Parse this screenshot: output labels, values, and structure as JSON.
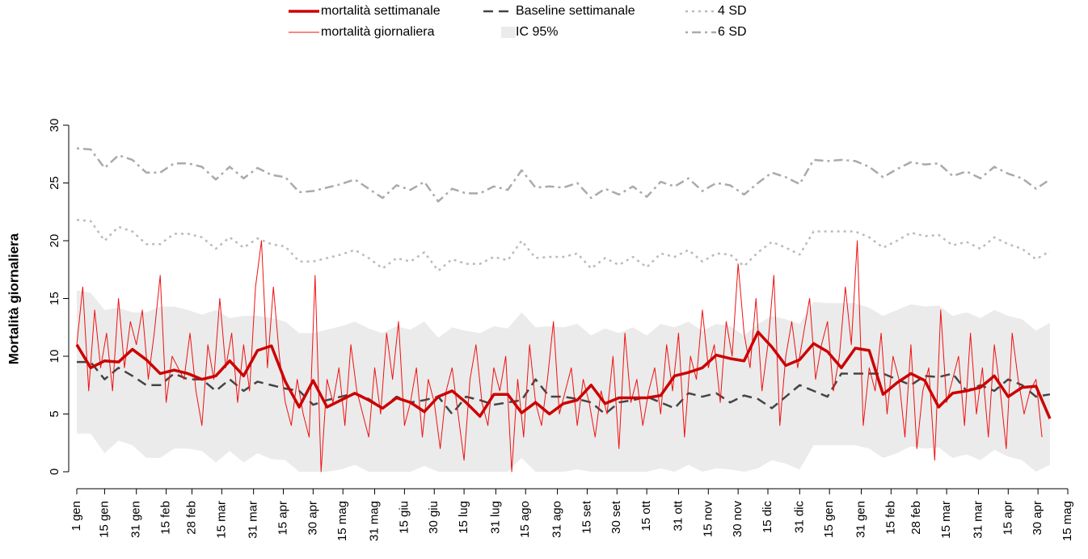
{
  "chart_data": {
    "type": "line",
    "y_label": "Mortalità giornaliera",
    "xlim": [
      0,
      499
    ],
    "xticks": [
      {
        "value": 0,
        "label": "1 gen"
      },
      {
        "value": 14,
        "label": "15 gen"
      },
      {
        "value": 30,
        "label": "31 gen"
      },
      {
        "value": 45,
        "label": "15 feb"
      },
      {
        "value": 58,
        "label": "28 feb"
      },
      {
        "value": 73,
        "label": "15 mar"
      },
      {
        "value": 89,
        "label": "31 mar"
      },
      {
        "value": 104,
        "label": "15 apr"
      },
      {
        "value": 119,
        "label": "30 apr"
      },
      {
        "value": 134,
        "label": "15 mag"
      },
      {
        "value": 150,
        "label": "31 mag"
      },
      {
        "value": 165,
        "label": "15 giu"
      },
      {
        "value": 180,
        "label": "30 giu"
      },
      {
        "value": 195,
        "label": "15 lug"
      },
      {
        "value": 211,
        "label": "31 lug"
      },
      {
        "value": 226,
        "label": "15 ago"
      },
      {
        "value": 242,
        "label": "31 ago"
      },
      {
        "value": 257,
        "label": "15 set"
      },
      {
        "value": 272,
        "label": "30 set"
      },
      {
        "value": 287,
        "label": "15 ott"
      },
      {
        "value": 303,
        "label": "31 ott"
      },
      {
        "value": 318,
        "label": "15 nov"
      },
      {
        "value": 333,
        "label": "30 nov"
      },
      {
        "value": 348,
        "label": "15 dic"
      },
      {
        "value": 364,
        "label": "31 dic"
      },
      {
        "value": 379,
        "label": "15 gen"
      },
      {
        "value": 395,
        "label": "31 gen"
      },
      {
        "value": 410,
        "label": "15 feb"
      },
      {
        "value": 423,
        "label": "28 feb"
      },
      {
        "value": 438,
        "label": "15 mar"
      },
      {
        "value": 454,
        "label": "31 mar"
      },
      {
        "value": 469,
        "label": "15 apr"
      },
      {
        "value": 484,
        "label": "30 apr"
      },
      {
        "value": 499,
        "label": "15 mag"
      }
    ],
    "ylim": [
      0,
      30
    ],
    "yticks": [
      0,
      5,
      10,
      15,
      20,
      25,
      30
    ],
    "x": [
      0,
      7,
      14,
      21,
      28,
      35,
      42,
      49,
      56,
      63,
      70,
      77,
      84,
      91,
      98,
      105,
      112,
      119,
      126,
      133,
      140,
      147,
      154,
      161,
      168,
      175,
      182,
      189,
      196,
      203,
      210,
      217,
      224,
      231,
      238,
      245,
      252,
      259,
      266,
      273,
      280,
      287,
      294,
      301,
      308,
      315,
      322,
      329,
      336,
      343,
      350,
      357,
      364,
      371,
      378,
      385,
      392,
      399,
      406,
      413,
      420,
      427,
      434,
      441,
      448,
      455,
      462,
      469,
      476,
      483,
      490
    ],
    "series": [
      {
        "name": "mortalità settimanale",
        "color": "#cc0000",
        "linestyle": "solid",
        "width": "thick",
        "values": [
          11,
          9,
          9.6,
          9.5,
          10.6,
          9.7,
          8.5,
          8.8,
          8.5,
          8.0,
          8.3,
          9.6,
          8.3,
          10.5,
          10.9,
          7.8,
          5.6,
          7.9,
          5.6,
          6.2,
          6.8,
          6.2,
          5.5,
          6.4,
          6.0,
          5.2,
          6.5,
          7.0,
          6.0,
          4.8,
          6.7,
          6.7,
          5.1,
          6.0,
          5.0,
          5.9,
          6.2,
          7.5,
          5.9,
          6.4,
          6.4,
          6.4,
          6.6,
          8.3,
          8.6,
          9.0,
          10.1,
          9.8,
          9.6,
          12.1,
          10.8,
          9.2,
          9.7,
          11.1,
          10.4,
          9.0,
          10.7,
          10.5,
          6.7,
          7.7,
          8.5,
          7.9,
          5.6,
          6.8,
          7.0,
          7.3,
          8.3,
          6.5,
          7.3,
          7.4,
          4.6
        ]
      },
      {
        "name": "mortalità giornaliera",
        "color": "#ee1111",
        "linestyle": "solid",
        "width": "thin",
        "x": [
          0,
          3,
          6,
          9,
          12,
          15,
          18,
          21,
          24,
          27,
          30,
          33,
          36,
          39,
          42,
          45,
          48,
          51,
          54,
          57,
          60,
          63,
          66,
          69,
          72,
          75,
          78,
          81,
          84,
          87,
          90,
          93,
          96,
          99,
          102,
          105,
          108,
          111,
          114,
          117,
          120,
          123,
          126,
          129,
          132,
          135,
          138,
          141,
          144,
          147,
          150,
          153,
          156,
          159,
          162,
          165,
          168,
          171,
          174,
          177,
          180,
          183,
          186,
          189,
          192,
          195,
          198,
          201,
          204,
          207,
          210,
          213,
          216,
          219,
          222,
          225,
          228,
          231,
          234,
          237,
          240,
          243,
          246,
          249,
          252,
          255,
          258,
          261,
          264,
          267,
          270,
          273,
          276,
          279,
          282,
          285,
          288,
          291,
          294,
          297,
          300,
          303,
          306,
          309,
          312,
          315,
          318,
          321,
          324,
          327,
          330,
          333,
          336,
          339,
          342,
          345,
          348,
          351,
          354,
          357,
          360,
          363,
          366,
          369,
          372,
          375,
          378,
          381,
          384,
          387,
          390,
          393,
          396,
          399,
          402,
          405,
          408,
          411,
          414,
          417,
          420,
          423,
          426,
          429,
          432,
          435,
          438,
          441,
          444,
          447,
          450,
          453,
          456,
          459,
          462,
          465,
          468,
          471,
          474,
          477,
          480,
          483,
          486
        ],
        "values": [
          11,
          16,
          7,
          14,
          9,
          12,
          7,
          15,
          9,
          13,
          11,
          14,
          8,
          12,
          17,
          6,
          10,
          9,
          8,
          12,
          7,
          4,
          11,
          8,
          15,
          9,
          12,
          6,
          11,
          7,
          16,
          20,
          9,
          16,
          10,
          6,
          4,
          8,
          5,
          3,
          17,
          0,
          8,
          6,
          9,
          4,
          11,
          7,
          5,
          3,
          9,
          5,
          12,
          8,
          13,
          4,
          6,
          9,
          3,
          8,
          6,
          2,
          7,
          9,
          5,
          1,
          8,
          11,
          6,
          4,
          9,
          7,
          10,
          0,
          8,
          3,
          11,
          6,
          4,
          8,
          13,
          5,
          7,
          9,
          4,
          8,
          6,
          3,
          7,
          5,
          10,
          2,
          12,
          6,
          8,
          4,
          7,
          9,
          5,
          11,
          7,
          12,
          3,
          10,
          8,
          14,
          9,
          11,
          6,
          13,
          10,
          18,
          12,
          9,
          15,
          7,
          11,
          17,
          4,
          10,
          13,
          9,
          12,
          15,
          8,
          11,
          13,
          7,
          10,
          16,
          11,
          20,
          4,
          9,
          7,
          12,
          5,
          10,
          8,
          3,
          11,
          2,
          7,
          9,
          1,
          14,
          6,
          8,
          10,
          4,
          12,
          5,
          9,
          3,
          11,
          7,
          2,
          12,
          8,
          5,
          7,
          8,
          3
        ]
      },
      {
        "name": "Baseline settimanale",
        "color": "#444444",
        "linestyle": "dashed",
        "width": "normal",
        "values": [
          9.5,
          9.5,
          8.0,
          9.0,
          8.3,
          7.5,
          7.5,
          8.5,
          8.0,
          8.0,
          7.0,
          8.0,
          7.0,
          7.8,
          7.5,
          7.2,
          7.0,
          5.8,
          6.2,
          6.5,
          6.8,
          6.3,
          5.5,
          6.5,
          6.0,
          6.2,
          6.5,
          5.0,
          6.5,
          6.2,
          5.8,
          6.0,
          6.2,
          8.0,
          6.5,
          6.5,
          6.3,
          6.0,
          5.0,
          6.0,
          6.2,
          6.5,
          6.0,
          5.5,
          6.8,
          6.5,
          6.8,
          6.0,
          6.6,
          6.3,
          5.5,
          6.5,
          7.5,
          7.0,
          6.5,
          8.5,
          8.5,
          8.5,
          8.5,
          8.0,
          7.5,
          8.3,
          8.2,
          8.5,
          7.0,
          7.5,
          7.0,
          8.0,
          7.5,
          6.5,
          6.7
        ]
      },
      {
        "name": "IC 95%",
        "color": "#ebebeb",
        "linestyle": "band",
        "upper": [
          15.7,
          15.5,
          14.0,
          14.2,
          13.8,
          13.8,
          14.3,
          14.3,
          14.0,
          13.6,
          14.0,
          13.3,
          13.5,
          13.5,
          13.3,
          13.0,
          12.0,
          12.0,
          12.3,
          12.6,
          13.0,
          12.4,
          12.0,
          12.6,
          12.3,
          13.0,
          11.6,
          12.5,
          12.2,
          12.0,
          12.6,
          12.4,
          13.8,
          12.5,
          12.6,
          12.5,
          12.8,
          11.8,
          12.4,
          12.0,
          12.5,
          11.8,
          12.8,
          12.5,
          13.0,
          12.2,
          12.8,
          12.6,
          11.8,
          12.8,
          13.5,
          13.2,
          12.8,
          14.7,
          14.6,
          14.6,
          14.6,
          14.2,
          13.5,
          14.0,
          14.5,
          14.3,
          14.4,
          13.5,
          13.8,
          13.3,
          14.0,
          13.5,
          13.2,
          12.2,
          12.9
        ],
        "lower": [
          3.3,
          3.3,
          1.6,
          2.7,
          2.3,
          1.2,
          1.2,
          2.0,
          2.0,
          1.8,
          0.8,
          1.8,
          0.8,
          1.6,
          1.1,
          1.0,
          0,
          0,
          0,
          0.2,
          0.6,
          0,
          0,
          0,
          0,
          0.5,
          0,
          0,
          0,
          0,
          0,
          0,
          1.2,
          0,
          0,
          0,
          0.2,
          0,
          0,
          0,
          0,
          0,
          0.3,
          0,
          0.6,
          0,
          0.3,
          0.2,
          0,
          0.3,
          1.0,
          0.7,
          0.2,
          2.3,
          2.3,
          2.3,
          2.3,
          2.0,
          1.2,
          1.6,
          2.2,
          2.0,
          2.1,
          1.2,
          1.5,
          1.0,
          1.9,
          1.3,
          1.0,
          0,
          0.6
        ]
      },
      {
        "name": "4 SD",
        "color": "#bbbbbb",
        "linestyle": "dotted",
        "width": "normal",
        "values": [
          21.8,
          21.7,
          20.0,
          21.2,
          20.8,
          19.7,
          19.7,
          20.6,
          20.6,
          20.3,
          19.3,
          20.3,
          19.4,
          20.2,
          19.7,
          19.5,
          18.2,
          18.2,
          18.5,
          18.8,
          19.2,
          18.5,
          17.6,
          18.5,
          18.2,
          19.0,
          17.4,
          18.4,
          18.0,
          18.0,
          18.6,
          18.3,
          20.0,
          18.5,
          18.6,
          18.6,
          18.9,
          17.6,
          18.5,
          17.9,
          18.6,
          17.7,
          18.9,
          18.6,
          19.2,
          18.2,
          18.9,
          18.8,
          17.8,
          19.0,
          19.9,
          19.4,
          18.8,
          20.8,
          20.8,
          20.8,
          20.8,
          20.3,
          19.4,
          20.0,
          20.7,
          20.4,
          20.5,
          19.6,
          19.9,
          19.3,
          20.3,
          19.7,
          19.3,
          18.4,
          19.1
        ]
      },
      {
        "name": "6 SD",
        "color": "#aaaaaa",
        "linestyle": "dotdash",
        "width": "normal",
        "values": [
          28.0,
          27.9,
          26.3,
          27.4,
          27.0,
          25.9,
          25.9,
          26.7,
          26.7,
          26.4,
          25.3,
          26.4,
          25.4,
          26.3,
          25.7,
          25.5,
          24.2,
          24.3,
          24.6,
          24.9,
          25.3,
          24.5,
          23.7,
          24.8,
          24.4,
          25.1,
          23.4,
          24.5,
          24.1,
          24.1,
          24.7,
          24.4,
          26.1,
          24.6,
          24.7,
          24.6,
          25.0,
          23.7,
          24.5,
          24.0,
          24.7,
          23.8,
          25.1,
          24.7,
          25.4,
          24.3,
          25.0,
          24.8,
          24.0,
          25.0,
          25.9,
          25.5,
          24.9,
          27.0,
          26.9,
          27.0,
          26.9,
          26.4,
          25.5,
          26.2,
          26.8,
          26.6,
          26.7,
          25.6,
          26.0,
          25.4,
          26.4,
          25.8,
          25.4,
          24.5,
          25.3
        ]
      }
    ]
  }
}
